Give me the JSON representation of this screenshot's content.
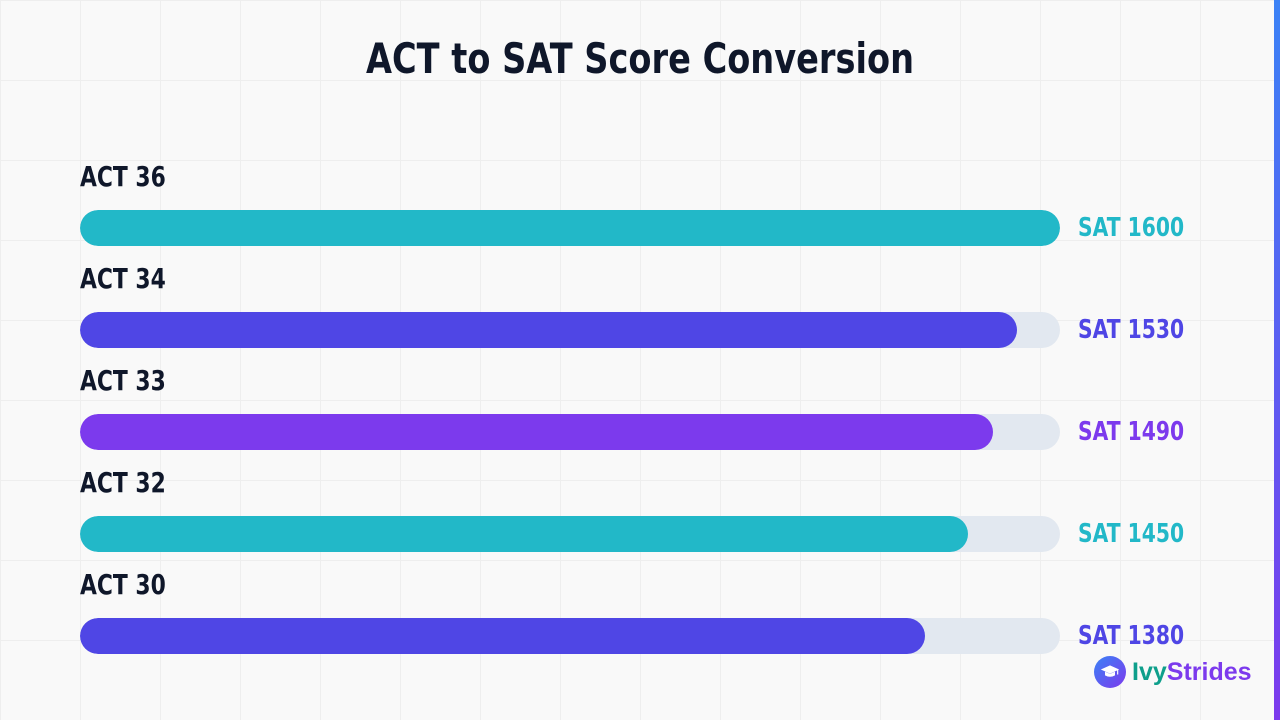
{
  "title": "ACT to SAT Score Conversion",
  "brand": {
    "logo_icon": "graduation-cap-icon",
    "name_part1": "Ivy",
    "name_part2": "Strides",
    "colors": {
      "part1": "#0e9f8b",
      "part2": "#7c3aed"
    }
  },
  "colors": {
    "track": "#e2e8f0",
    "cyan": "#22b8c8",
    "indigo": "#4f46e5",
    "purple": "#7c3aed",
    "text": "#0f172a"
  },
  "chart_data": {
    "type": "bar",
    "orientation": "horizontal",
    "title": "ACT to SAT Score Conversion",
    "xlim": [
      0,
      1600
    ],
    "grid": true,
    "legend": "none",
    "categories": [
      "ACT 36",
      "ACT 34",
      "ACT 33",
      "ACT 32",
      "ACT 30"
    ],
    "values": [
      1600,
      1530,
      1490,
      1450,
      1380
    ],
    "value_labels": [
      "SAT 1600",
      "SAT 1530",
      "SAT 1490",
      "SAT 1450",
      "SAT 1380"
    ],
    "bar_colors": [
      "#22b8c8",
      "#4f46e5",
      "#7c3aed",
      "#22b8c8",
      "#4f46e5"
    ]
  }
}
